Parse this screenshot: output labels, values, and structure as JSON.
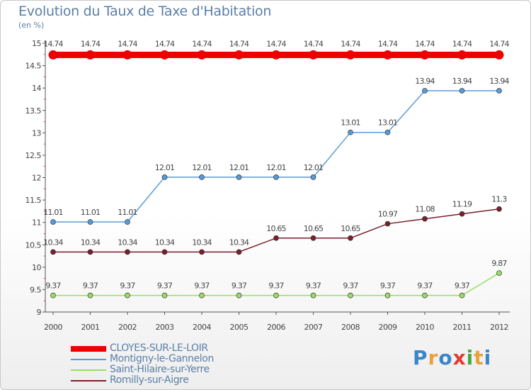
{
  "chart_data": {
    "type": "line",
    "title": "Evolution du Taux de Taxe d'Habitation",
    "subtitle": "(en %)",
    "x": [
      "2000",
      "2001",
      "2002",
      "2003",
      "2004",
      "2005",
      "2006",
      "2007",
      "2008",
      "2009",
      "2010",
      "2011",
      "2012"
    ],
    "ylim": [
      9,
      15
    ],
    "yticks": [
      "9",
      "9.5",
      "10",
      "10.5",
      "11",
      "11.5",
      "12",
      "12.5",
      "13",
      "13.5",
      "14",
      "14.5",
      "15"
    ],
    "series": [
      {
        "name": "CLOYES-SUR-LE-LOIR",
        "color": "#ee0000",
        "values": [
          14.74,
          14.74,
          14.74,
          14.74,
          14.74,
          14.74,
          14.74,
          14.74,
          14.74,
          14.74,
          14.74,
          14.74,
          14.74
        ],
        "labels": [
          "14.74",
          "14.74",
          "14.74",
          "14.74",
          "14.74",
          "14.74",
          "14.74",
          "14.74",
          "14.74",
          "14.74",
          "14.74",
          "14.74",
          "14.74"
        ]
      },
      {
        "name": "Montigny-le-Gannelon",
        "color": "#5b9bd5",
        "values": [
          11.01,
          11.01,
          11.01,
          12.01,
          12.01,
          12.01,
          12.01,
          12.01,
          13.01,
          13.01,
          13.94,
          13.94,
          13.94
        ],
        "labels": [
          "11.01",
          "11.01",
          "11.01",
          "12.01",
          "12.01",
          "12.01",
          "12.01",
          "12.01",
          "13.01",
          "13.01",
          "13.94",
          "13.94",
          "13.94"
        ]
      },
      {
        "name": "Saint-Hilaire-sur-Yerre",
        "color": "#99dd66",
        "values": [
          9.37,
          9.37,
          9.37,
          9.37,
          9.37,
          9.37,
          9.37,
          9.37,
          9.37,
          9.37,
          9.37,
          9.37,
          9.87
        ],
        "labels": [
          "9.37",
          "9.37",
          "9.37",
          "9.37",
          "9.37",
          "9.37",
          "9.37",
          "9.37",
          "9.37",
          "9.37",
          "9.37",
          "9.37",
          "9.87"
        ]
      },
      {
        "name": "Romilly-sur-Aigre",
        "color": "#7a1f2b",
        "values": [
          10.34,
          10.34,
          10.34,
          10.34,
          10.34,
          10.34,
          10.65,
          10.65,
          10.65,
          10.97,
          11.08,
          11.19,
          11.3
        ],
        "labels": [
          "10.34",
          "10.34",
          "10.34",
          "10.34",
          "10.34",
          "10.34",
          "10.65",
          "10.65",
          "10.65",
          "10.97",
          "11.08",
          "11.19",
          "11.3"
        ]
      }
    ],
    "grid": false,
    "legend_position": "bottom-left"
  },
  "logo": {
    "letters": [
      "P",
      "r",
      "o",
      "x",
      "i",
      "t",
      "i"
    ],
    "colors": [
      "#3a86c8",
      "#e9a23b",
      "#3a86c8",
      "#e03c31",
      "#49a942",
      "#e9a23b",
      "#3a86c8"
    ]
  }
}
